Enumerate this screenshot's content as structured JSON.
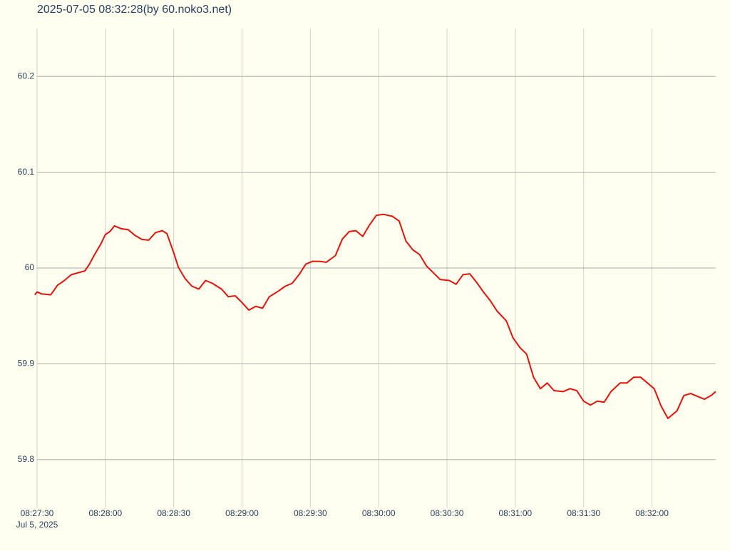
{
  "chart_data": {
    "type": "line",
    "title": "2025-07-05 08:32:28(by 60.noko3.net)",
    "date_label": "Jul 5, 2025",
    "x": [
      "08:27:29",
      "08:27:30",
      "08:27:32",
      "08:27:36",
      "08:27:39",
      "08:27:42",
      "08:27:45",
      "08:27:48",
      "08:27:51",
      "08:27:53",
      "08:27:55",
      "08:27:58",
      "08:28:00",
      "08:28:02",
      "08:28:04",
      "08:28:07",
      "08:28:10",
      "08:28:13",
      "08:28:16",
      "08:28:19",
      "08:28:22",
      "08:28:25",
      "08:28:27",
      "08:28:30",
      "08:28:32",
      "08:28:35",
      "08:28:38",
      "08:28:41",
      "08:28:44",
      "08:28:47",
      "08:28:51",
      "08:28:54",
      "08:28:57",
      "08:29:00",
      "08:29:03",
      "08:29:06",
      "08:29:09",
      "08:29:12",
      "08:29:16",
      "08:29:19",
      "08:29:22",
      "08:29:25",
      "08:29:28",
      "08:29:31",
      "08:29:34",
      "08:29:37",
      "08:29:41",
      "08:29:44",
      "08:29:47",
      "08:29:50",
      "08:29:53",
      "08:29:56",
      "08:29:59",
      "08:30:02",
      "08:30:06",
      "08:30:09",
      "08:30:12",
      "08:30:15",
      "08:30:18",
      "08:30:21",
      "08:30:24",
      "08:30:27",
      "08:30:31",
      "08:30:34",
      "08:30:37",
      "08:30:40",
      "08:30:43",
      "08:30:46",
      "08:30:49",
      "08:30:52",
      "08:30:56",
      "08:30:59",
      "08:31:02",
      "08:31:05",
      "08:31:08",
      "08:31:11",
      "08:31:14",
      "08:31:17",
      "08:31:21",
      "08:31:24",
      "08:31:27",
      "08:31:30",
      "08:31:33",
      "08:31:36",
      "08:31:39",
      "08:31:42",
      "08:31:46",
      "08:31:49",
      "08:31:52",
      "08:31:55",
      "08:31:58",
      "08:32:01",
      "08:32:04",
      "08:32:07",
      "08:32:11",
      "08:32:14",
      "08:32:17",
      "08:32:20",
      "08:32:23",
      "08:32:26",
      "08:32:28"
    ],
    "series": [
      {
        "color": "#e3120b",
        "values": [
          59.972,
          59.975,
          59.973,
          59.972,
          59.982,
          59.987,
          59.993,
          59.995,
          59.997,
          60.004,
          60.013,
          60.025,
          60.035,
          60.038,
          60.044,
          60.041,
          60.04,
          60.034,
          60.03,
          60.029,
          60.037,
          60.039,
          60.036,
          60.016,
          60.001,
          59.989,
          59.981,
          59.978,
          59.987,
          59.984,
          59.978,
          59.97,
          59.971,
          59.964,
          59.956,
          59.96,
          59.958,
          59.97,
          59.976,
          59.981,
          59.984,
          59.993,
          60.004,
          60.007,
          60.007,
          60.006,
          60.013,
          60.03,
          60.038,
          60.039,
          60.033,
          60.045,
          60.055,
          60.056,
          60.054,
          60.049,
          60.028,
          60.019,
          60.014,
          60.002,
          59.995,
          59.988,
          59.987,
          59.983,
          59.993,
          59.994,
          59.985,
          59.975,
          59.966,
          59.955,
          59.945,
          59.927,
          59.917,
          59.91,
          59.886,
          59.874,
          59.88,
          59.872,
          59.871,
          59.874,
          59.872,
          59.861,
          59.857,
          59.861,
          59.86,
          59.871,
          59.88,
          59.88,
          59.886,
          59.886,
          59.88,
          59.874,
          59.856,
          59.843,
          59.851,
          59.867,
          59.869,
          59.866,
          59.863,
          59.867,
          59.871
        ]
      }
    ],
    "xlim": [
      "08:27:29",
      "08:32:28"
    ],
    "xticks": [
      "08:27:30",
      "08:28:00",
      "08:28:30",
      "08:29:00",
      "08:29:30",
      "08:30:00",
      "08:30:30",
      "08:31:00",
      "08:31:30",
      "08:32:00"
    ],
    "ylim": [
      59.75,
      60.25
    ],
    "yticks": [
      59.8,
      59.9,
      60,
      60.1,
      60.2
    ],
    "grid": true
  }
}
